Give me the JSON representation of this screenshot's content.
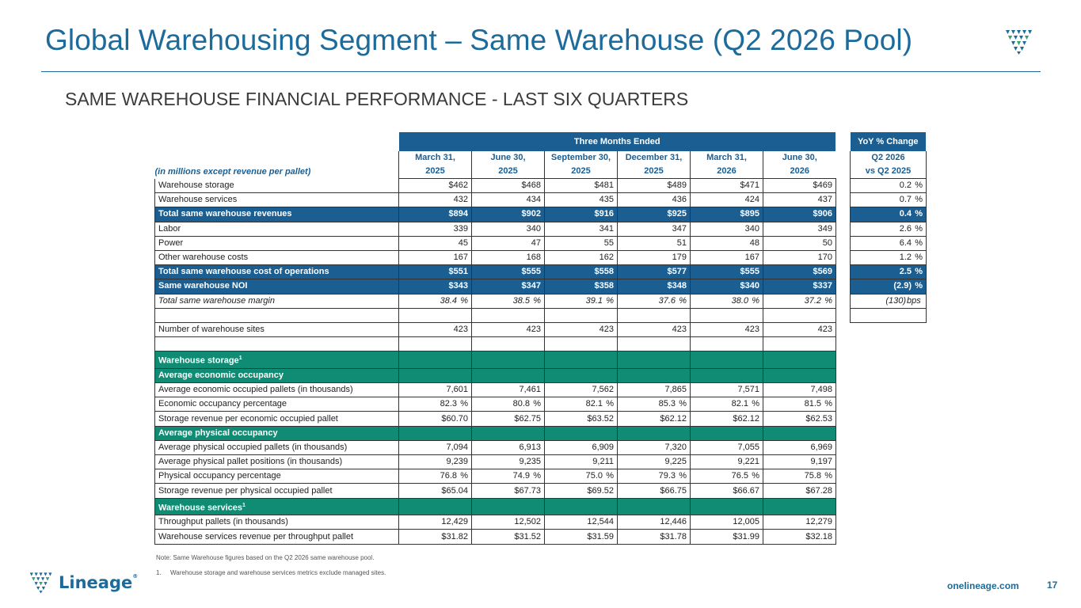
{
  "header": {
    "title": "Global Warehousing Segment – Same Warehouse (Q2 2026 Pool)",
    "subtitle": "SAME WAREHOUSE FINANCIAL PERFORMANCE - LAST SIX QUARTERS"
  },
  "table": {
    "band_three_months": "Three Months Ended",
    "band_yoy": "YoY % Change",
    "unit_label": "(in millions except revenue per pallet)",
    "columns": [
      [
        "March 31,",
        "2025"
      ],
      [
        "June 30,",
        "2025"
      ],
      [
        "September 30,",
        "2025"
      ],
      [
        "December 31,",
        "2025"
      ],
      [
        "March 31,",
        "2026"
      ],
      [
        "June 30,",
        "2026"
      ]
    ],
    "yoy_header": [
      "Q2 2026",
      "vs Q2 2025"
    ],
    "rows": [
      {
        "label": "Warehouse storage",
        "style": "normal",
        "values": [
          "$462",
          "$468",
          "$481",
          "$489",
          "$471",
          "$469"
        ],
        "yoy": "0.2",
        "yoy_unit": "%"
      },
      {
        "label": "Warehouse services",
        "style": "normal",
        "values": [
          "432",
          "434",
          "435",
          "436",
          "424",
          "437"
        ],
        "yoy": "0.7",
        "yoy_unit": "%"
      },
      {
        "label": "Total same warehouse revenues",
        "style": "total",
        "values": [
          "$894",
          "$902",
          "$916",
          "$925",
          "$895",
          "$906"
        ],
        "yoy": "0.4",
        "yoy_unit": "%"
      },
      {
        "label": "Labor",
        "style": "normal",
        "values": [
          "339",
          "340",
          "341",
          "347",
          "340",
          "349"
        ],
        "yoy": "2.6",
        "yoy_unit": "%"
      },
      {
        "label": "Power",
        "style": "normal",
        "values": [
          "45",
          "47",
          "55",
          "51",
          "48",
          "50"
        ],
        "yoy": "6.4",
        "yoy_unit": "%"
      },
      {
        "label": "Other warehouse costs",
        "style": "normal",
        "values": [
          "167",
          "168",
          "162",
          "179",
          "167",
          "170"
        ],
        "yoy": "1.2",
        "yoy_unit": "%"
      },
      {
        "label": "Total same warehouse cost of operations",
        "style": "total",
        "values": [
          "$551",
          "$555",
          "$558",
          "$577",
          "$555",
          "$569"
        ],
        "yoy": "2.5",
        "yoy_unit": "%"
      },
      {
        "label": "Same warehouse NOI",
        "style": "total",
        "values": [
          "$343",
          "$347",
          "$358",
          "$348",
          "$340",
          "$337"
        ],
        "yoy": "(2.9)",
        "yoy_unit": "%"
      },
      {
        "label": "Total same warehouse margin",
        "style": "italic",
        "values": [
          "38.4",
          "38.5",
          "39.1",
          "37.6",
          "38.0",
          "37.2"
        ],
        "unit": "%",
        "yoy": "(130)",
        "yoy_unit": "bps"
      },
      {
        "label": "",
        "style": "blank",
        "values": [
          "",
          "",
          "",
          "",
          "",
          ""
        ],
        "yoy": "",
        "yoy_unit": ""
      },
      {
        "label": "Number of warehouse sites",
        "style": "normal",
        "values": [
          "423",
          "423",
          "423",
          "423",
          "423",
          "423"
        ]
      },
      {
        "label": "",
        "style": "blank",
        "values": [
          "",
          "",
          "",
          "",
          "",
          ""
        ]
      },
      {
        "label": "Warehouse storage",
        "sup": "1",
        "style": "section",
        "values": [
          "",
          "",
          "",
          "",
          "",
          ""
        ]
      },
      {
        "label": "Average economic occupancy",
        "style": "section",
        "values": [
          "",
          "",
          "",
          "",
          "",
          ""
        ]
      },
      {
        "label": "Average economic occupied pallets (in thousands)",
        "style": "normal",
        "values": [
          "7,601",
          "7,461",
          "7,562",
          "7,865",
          "7,571",
          "7,498"
        ]
      },
      {
        "label": "Economic occupancy percentage",
        "style": "normal",
        "values": [
          "82.3",
          "80.8",
          "82.1",
          "85.3",
          "82.1",
          "81.5"
        ],
        "unit": "%"
      },
      {
        "label": "Storage revenue per economic occupied pallet",
        "style": "normal",
        "values": [
          "$60.70",
          "$62.75",
          "$63.52",
          "$62.12",
          "$62.12",
          "$62.53"
        ]
      },
      {
        "label": "Average physical occupancy",
        "style": "section",
        "values": [
          "",
          "",
          "",
          "",
          "",
          ""
        ]
      },
      {
        "label": "Average physical occupied pallets (in thousands)",
        "style": "normal",
        "values": [
          "7,094",
          "6,913",
          "6,909",
          "7,320",
          "7,055",
          "6,969"
        ]
      },
      {
        "label": "Average physical pallet positions (in thousands)",
        "style": "normal",
        "values": [
          "9,239",
          "9,235",
          "9,211",
          "9,225",
          "9,221",
          "9,197"
        ]
      },
      {
        "label": "Physical occupancy percentage",
        "style": "normal",
        "values": [
          "76.8",
          "74.9",
          "75.0",
          "79.3",
          "76.5",
          "75.8"
        ],
        "unit": "%"
      },
      {
        "label": "Storage revenue per physical occupied pallet",
        "style": "normal",
        "values": [
          "$65.04",
          "$67.73",
          "$69.52",
          "$66.75",
          "$66.67",
          "$67.28"
        ]
      },
      {
        "label": "Warehouse services",
        "sup": "1",
        "style": "section",
        "values": [
          "",
          "",
          "",
          "",
          "",
          ""
        ]
      },
      {
        "label": "Throughput pallets (in thousands)",
        "style": "normal",
        "values": [
          "12,429",
          "12,502",
          "12,544",
          "12,446",
          "12,005",
          "12,279"
        ]
      },
      {
        "label": "Warehouse services revenue per throughput pallet",
        "style": "normal",
        "values": [
          "$31.82",
          "$31.52",
          "$31.59",
          "$31.78",
          "$31.99",
          "$32.18"
        ]
      }
    ]
  },
  "notes": {
    "note": "Note: Same Warehouse figures based on the Q2 2026 same warehouse pool.",
    "footnote_num": "1.",
    "footnote": "Warehouse storage and warehouse services metrics exclude managed sites."
  },
  "footer": {
    "brand": "Lineage",
    "brand_mark": "®",
    "site": "onelineage.com",
    "page": "17"
  },
  "colors": {
    "brand_blue": "#1c6b9a",
    "total_row": "#1b5e91",
    "section_row": "#0f8c73"
  },
  "icons": [
    "lineage-logo-icon"
  ]
}
